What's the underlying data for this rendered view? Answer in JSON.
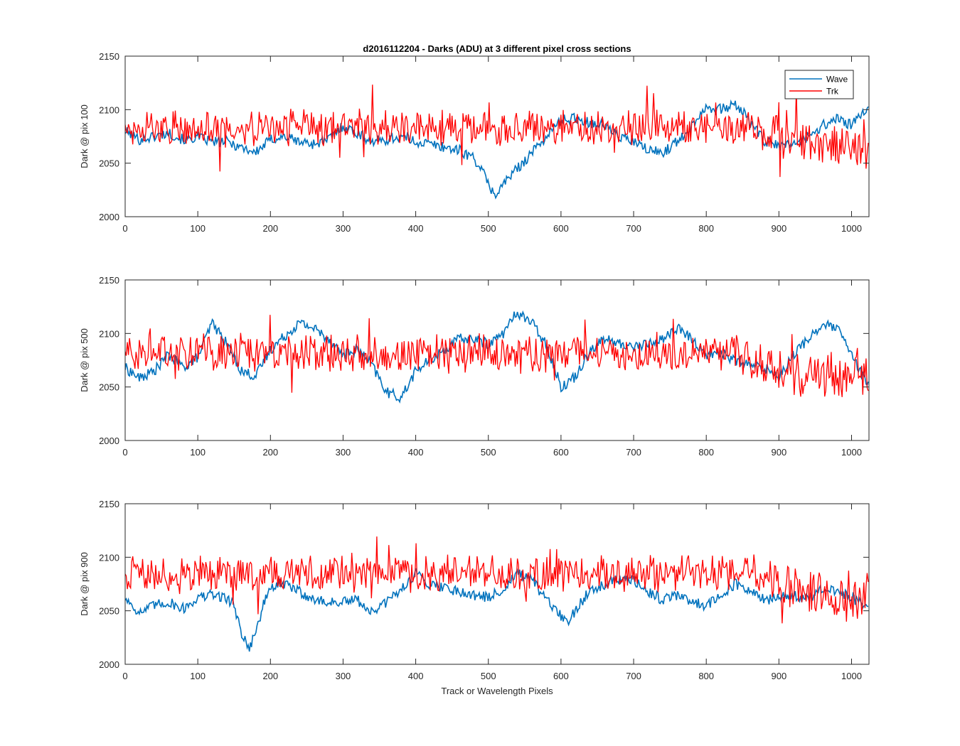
{
  "figure": {
    "title": "d2016112204 - Darks (ADU) at 3 different pixel cross sections",
    "xlabel": "Track or Wavelength Pixels"
  },
  "colors": {
    "wave": "#0072BD",
    "trk": "#FF0000",
    "axis": "#262626"
  },
  "legend": {
    "placement": "top-right",
    "entries": [
      "Wave",
      "Trk"
    ]
  },
  "chart_data": [
    {
      "type": "line",
      "ylabel": "Dark @ pix 100",
      "xlim": [
        0,
        1024
      ],
      "ylim": [
        2000,
        2150
      ],
      "xticks": [
        0,
        100,
        200,
        300,
        400,
        500,
        600,
        700,
        800,
        900,
        1000
      ],
      "yticks": [
        2000,
        2050,
        2100,
        2150
      ],
      "grid": false,
      "series": [
        {
          "name": "Wave",
          "x": [
            0,
            20,
            40,
            60,
            80,
            100,
            120,
            140,
            160,
            180,
            200,
            220,
            240,
            260,
            280,
            300,
            320,
            340,
            360,
            380,
            400,
            420,
            440,
            460,
            480,
            490,
            500,
            510,
            520,
            530,
            540,
            560,
            580,
            600,
            620,
            640,
            660,
            680,
            700,
            720,
            740,
            760,
            780,
            790,
            800,
            820,
            840,
            860,
            880,
            900,
            920,
            940,
            960,
            980,
            1000,
            1010,
            1023
          ],
          "y": [
            2080,
            2072,
            2075,
            2078,
            2072,
            2074,
            2070,
            2070,
            2065,
            2060,
            2072,
            2075,
            2070,
            2068,
            2072,
            2085,
            2078,
            2070,
            2072,
            2075,
            2070,
            2068,
            2065,
            2062,
            2055,
            2045,
            2030,
            2020,
            2030,
            2038,
            2045,
            2060,
            2075,
            2090,
            2092,
            2088,
            2085,
            2075,
            2070,
            2062,
            2060,
            2070,
            2085,
            2095,
            2103,
            2100,
            2105,
            2090,
            2070,
            2066,
            2068,
            2075,
            2085,
            2092,
            2085,
            2092,
            2102
          ]
        },
        {
          "name": "Trk",
          "level": 2083,
          "noise_amplitude": 14,
          "x_start_low_variance": 860,
          "late_level": 2065
        }
      ]
    },
    {
      "type": "line",
      "ylabel": "Dark @ pix 500",
      "xlim": [
        0,
        1024
      ],
      "ylim": [
        2000,
        2150
      ],
      "xticks": [
        0,
        100,
        200,
        300,
        400,
        500,
        600,
        700,
        800,
        900,
        1000
      ],
      "yticks": [
        2000,
        2050,
        2100,
        2150
      ],
      "grid": false,
      "series": [
        {
          "name": "Wave",
          "x": [
            0,
            20,
            40,
            60,
            80,
            100,
            120,
            140,
            160,
            180,
            200,
            220,
            240,
            260,
            280,
            300,
            320,
            340,
            360,
            380,
            400,
            420,
            440,
            460,
            480,
            500,
            520,
            540,
            560,
            580,
            600,
            620,
            640,
            660,
            680,
            700,
            720,
            740,
            760,
            780,
            800,
            820,
            840,
            860,
            880,
            900,
            920,
            940,
            960,
            980,
            1000,
            1023
          ],
          "y": [
            2068,
            2058,
            2065,
            2080,
            2068,
            2078,
            2110,
            2090,
            2065,
            2060,
            2085,
            2098,
            2110,
            2105,
            2095,
            2080,
            2085,
            2070,
            2045,
            2040,
            2065,
            2075,
            2085,
            2095,
            2095,
            2090,
            2100,
            2120,
            2110,
            2090,
            2050,
            2060,
            2085,
            2095,
            2090,
            2088,
            2090,
            2095,
            2105,
            2095,
            2080,
            2082,
            2075,
            2070,
            2068,
            2060,
            2080,
            2095,
            2108,
            2105,
            2080,
            2050
          ]
        },
        {
          "name": "Trk",
          "level": 2082,
          "noise_amplitude": 14,
          "x_start_low_variance": 840,
          "late_level": 2062
        }
      ]
    },
    {
      "type": "line",
      "ylabel": "Dark @ pix 900",
      "xlim": [
        0,
        1024
      ],
      "ylim": [
        2000,
        2150
      ],
      "xticks": [
        0,
        100,
        200,
        300,
        400,
        500,
        600,
        700,
        800,
        900,
        1000
      ],
      "yticks": [
        2000,
        2050,
        2100,
        2150
      ],
      "grid": false,
      "series": [
        {
          "name": "Wave",
          "x": [
            0,
            20,
            40,
            60,
            80,
            100,
            120,
            140,
            150,
            160,
            170,
            180,
            190,
            200,
            220,
            240,
            260,
            280,
            300,
            320,
            340,
            360,
            380,
            400,
            420,
            440,
            460,
            480,
            500,
            520,
            540,
            560,
            580,
            600,
            610,
            620,
            640,
            660,
            680,
            700,
            720,
            740,
            760,
            780,
            800,
            820,
            840,
            860,
            880,
            900,
            920,
            940,
            960,
            980,
            1000,
            1023
          ],
          "y": [
            2062,
            2048,
            2055,
            2058,
            2052,
            2062,
            2065,
            2062,
            2055,
            2030,
            2015,
            2030,
            2055,
            2072,
            2075,
            2068,
            2060,
            2058,
            2058,
            2060,
            2048,
            2058,
            2070,
            2085,
            2075,
            2072,
            2068,
            2065,
            2062,
            2070,
            2085,
            2078,
            2060,
            2045,
            2040,
            2050,
            2070,
            2075,
            2080,
            2078,
            2068,
            2060,
            2065,
            2058,
            2055,
            2065,
            2075,
            2068,
            2060,
            2062,
            2065,
            2060,
            2070,
            2068,
            2062,
            2055
          ]
        },
        {
          "name": "Trk",
          "level": 2085,
          "noise_amplitude": 14,
          "x_start_low_variance": 870,
          "late_level": 2062
        }
      ]
    }
  ]
}
